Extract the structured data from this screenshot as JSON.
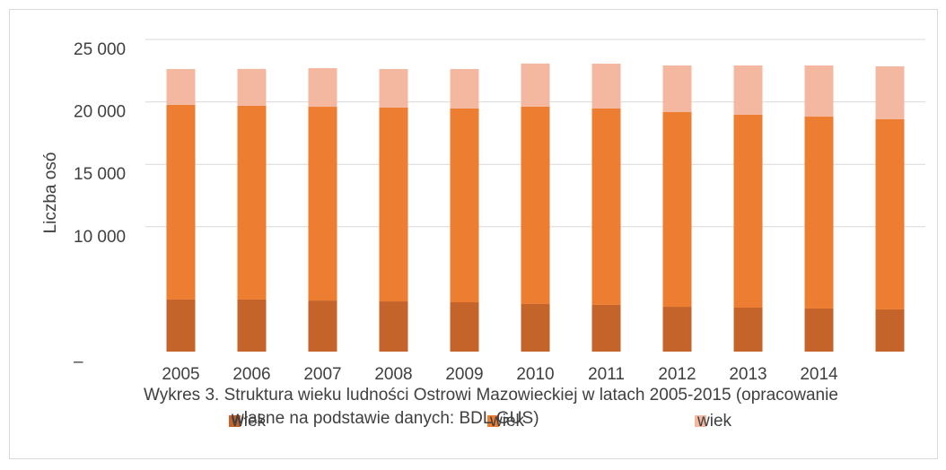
{
  "chart_data": {
    "type": "stacked_bar",
    "title": "Wykres 3. Struktura wieku ludności Ostrowi Mazowieckiej w latach 2005-2015 (opracowanie własne na podstawie danych: BDL GUS)",
    "y_label": "Liczba osó",
    "categories": [
      "2005",
      "2006",
      "2007",
      "2008",
      "2009",
      "2010",
      "2011",
      "2012",
      "2013",
      "2014",
      null
    ],
    "series": [
      {
        "name": "wiek",
        "color": "#c5642a",
        "values": [
          4170,
          4170,
          4090,
          4020,
          3950,
          3810,
          3740,
          3590,
          3520,
          3450,
          3380
        ]
      },
      {
        "name": "wiek",
        "color": "#ed7d31",
        "values": [
          15590,
          15520,
          15520,
          15520,
          15520,
          15810,
          15730,
          15590,
          15450,
          15370,
          15230
        ]
      },
      {
        "name": "wiek",
        "color": "#f4b8a0",
        "values": [
          2870,
          2950,
          3090,
          3090,
          3160,
          3450,
          3590,
          3740,
          3950,
          4100,
          4240
        ]
      }
    ],
    "ylim": [
      0,
      25000
    ],
    "yticks": [
      {
        "value": 0,
        "label": "–"
      },
      {
        "value": 10000,
        "label": "10 000"
      },
      {
        "value": 15000,
        "label": "15 000"
      },
      {
        "value": 20000,
        "label": "20 000"
      },
      {
        "value": 25000,
        "label": "25 000"
      }
    ],
    "grid": true
  }
}
